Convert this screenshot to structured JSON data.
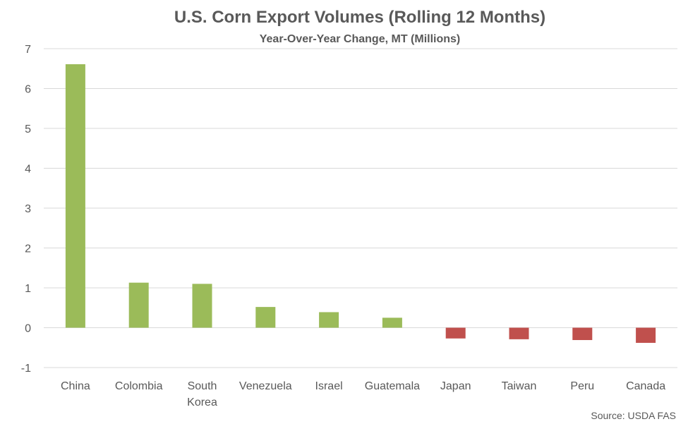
{
  "chart_data": {
    "type": "bar",
    "title": "U.S. Corn Export Volumes (Rolling 12 Months)",
    "subtitle": "Year-Over-Year Change, MT (Millions)",
    "source": "Source: USDA FAS",
    "categories": [
      "China",
      "Colombia",
      "South Korea",
      "Venezuela",
      "Israel",
      "Guatemala",
      "Japan",
      "Taiwan",
      "Peru",
      "Canada"
    ],
    "category_lines": [
      [
        "China"
      ],
      [
        "Colombia"
      ],
      [
        "South",
        "Korea"
      ],
      [
        "Venezuela"
      ],
      [
        "Israel"
      ],
      [
        "Guatemala"
      ],
      [
        "Japan"
      ],
      [
        "Taiwan"
      ],
      [
        "Peru"
      ],
      [
        "Canada"
      ]
    ],
    "values": [
      6.61,
      1.13,
      1.1,
      0.52,
      0.39,
      0.25,
      -0.27,
      -0.29,
      -0.31,
      -0.38
    ],
    "ylim": [
      -1,
      7
    ],
    "yticks": [
      -1,
      0,
      1,
      2,
      3,
      4,
      5,
      6,
      7
    ],
    "grid": true,
    "legend": "none",
    "colors": {
      "positive": "#9bbb59",
      "negative": "#c0504d"
    }
  }
}
